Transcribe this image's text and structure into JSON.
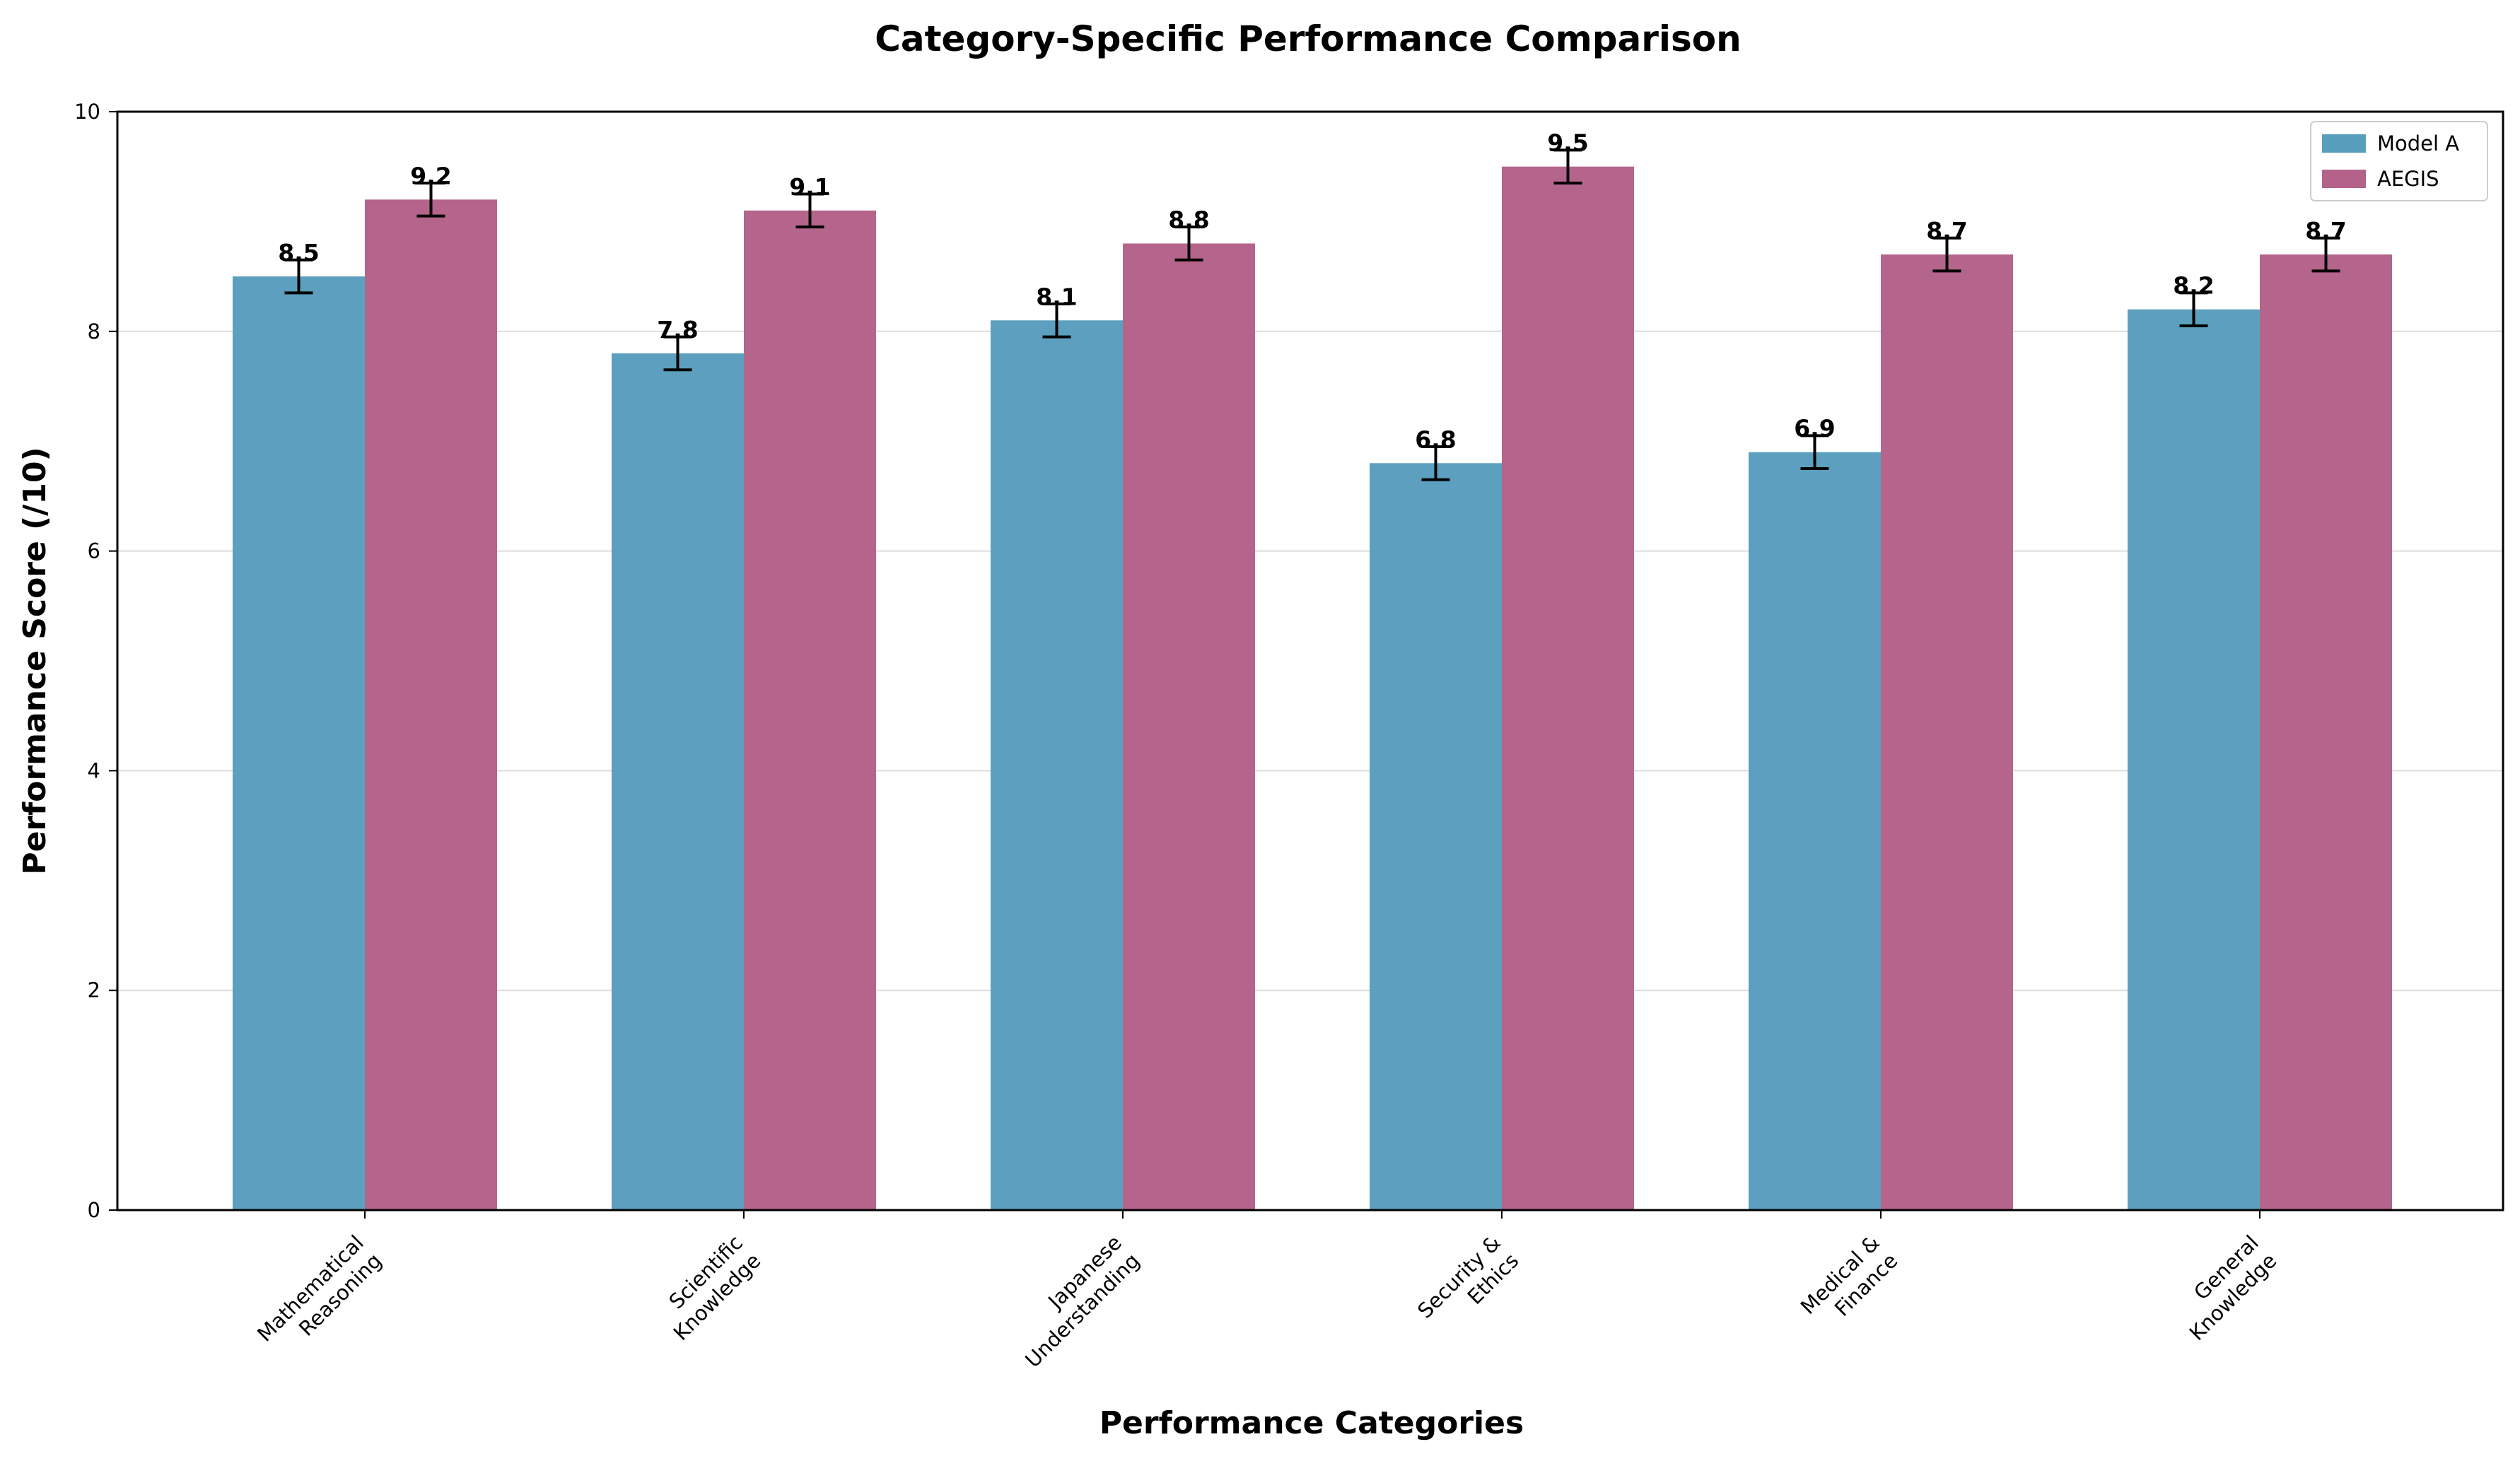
{
  "chart_data": {
    "type": "bar",
    "title": "Category-Specific Performance Comparison",
    "xlabel": "Performance Categories",
    "ylabel": "Performance Score (/10)",
    "ylim": [
      0,
      10
    ],
    "yticks": [
      0,
      2,
      4,
      6,
      8,
      10
    ],
    "grid": "y",
    "legend_position": "top-right",
    "categories": [
      [
        "Mathematical",
        "Reasoning"
      ],
      [
        "Scientific",
        "Knowledge"
      ],
      [
        "Japanese",
        "Understanding"
      ],
      [
        "Security &",
        "Ethics"
      ],
      [
        "Medical &",
        "Finance"
      ],
      [
        "General",
        "Knowledge"
      ]
    ],
    "series": [
      {
        "name": "Model A",
        "color": "#5a9ebe",
        "values": [
          8.5,
          7.8,
          8.1,
          6.8,
          6.9,
          8.2
        ],
        "errors": [
          0.15,
          0.15,
          0.15,
          0.15,
          0.15,
          0.15
        ],
        "labels": [
          "8.5",
          "7.8",
          "8.1",
          "6.8",
          "6.9",
          "8.2"
        ]
      },
      {
        "name": "AEGIS",
        "color": "#b4628a",
        "values": [
          9.2,
          9.1,
          8.8,
          9.5,
          8.7,
          8.7
        ],
        "errors": [
          0.15,
          0.15,
          0.15,
          0.15,
          0.15,
          0.15
        ],
        "labels": [
          "9.2",
          "9.1",
          "8.8",
          "9.5",
          "8.7",
          "8.7"
        ]
      }
    ]
  }
}
